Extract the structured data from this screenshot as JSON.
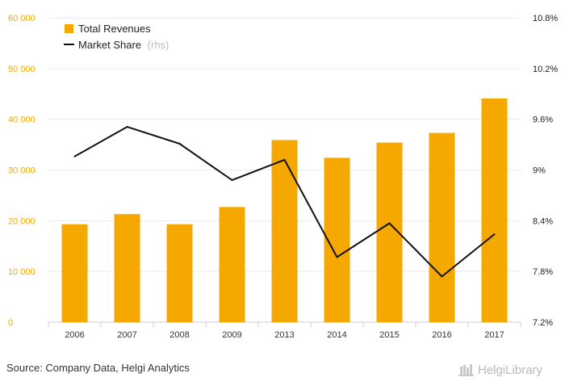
{
  "chart_data": {
    "type": "bar",
    "categories": [
      "2006",
      "2007",
      "2008",
      "2009",
      "2013",
      "2014",
      "2015",
      "2016",
      "2017"
    ],
    "series": [
      {
        "name": "Total Revenues",
        "type": "bar",
        "axis": "left",
        "values": [
          19300,
          21300,
          19300,
          22700,
          35900,
          32400,
          35400,
          37300,
          44100
        ]
      },
      {
        "name": "Market Share",
        "type": "line",
        "axis": "right",
        "values": [
          9.16,
          9.51,
          9.31,
          8.88,
          9.12,
          7.97,
          8.37,
          7.74,
          8.24
        ]
      }
    ],
    "legend": {
      "items": [
        "Total Revenues",
        "Market Share"
      ],
      "suffix": "(rhs)",
      "position": "top-left"
    },
    "y_left": {
      "ylim": [
        0,
        60000
      ],
      "ticks": [
        "0",
        "10 000",
        "20 000",
        "30 000",
        "40 000",
        "50 000",
        "60 000"
      ]
    },
    "y_right": {
      "ylim": [
        7.2,
        10.8
      ],
      "ticks": [
        "7.2%",
        "7.8%",
        "8.4%",
        "9%",
        "9.6%",
        "10.2%",
        "10.8%"
      ]
    },
    "grid": true,
    "colors": {
      "bar": "#f5a800",
      "line": "#111111",
      "left_axis_text": "#f5a800"
    }
  },
  "footer": {
    "source": "Source: Company Data, Helgi Analytics",
    "brand": "HelgiLibrary"
  }
}
